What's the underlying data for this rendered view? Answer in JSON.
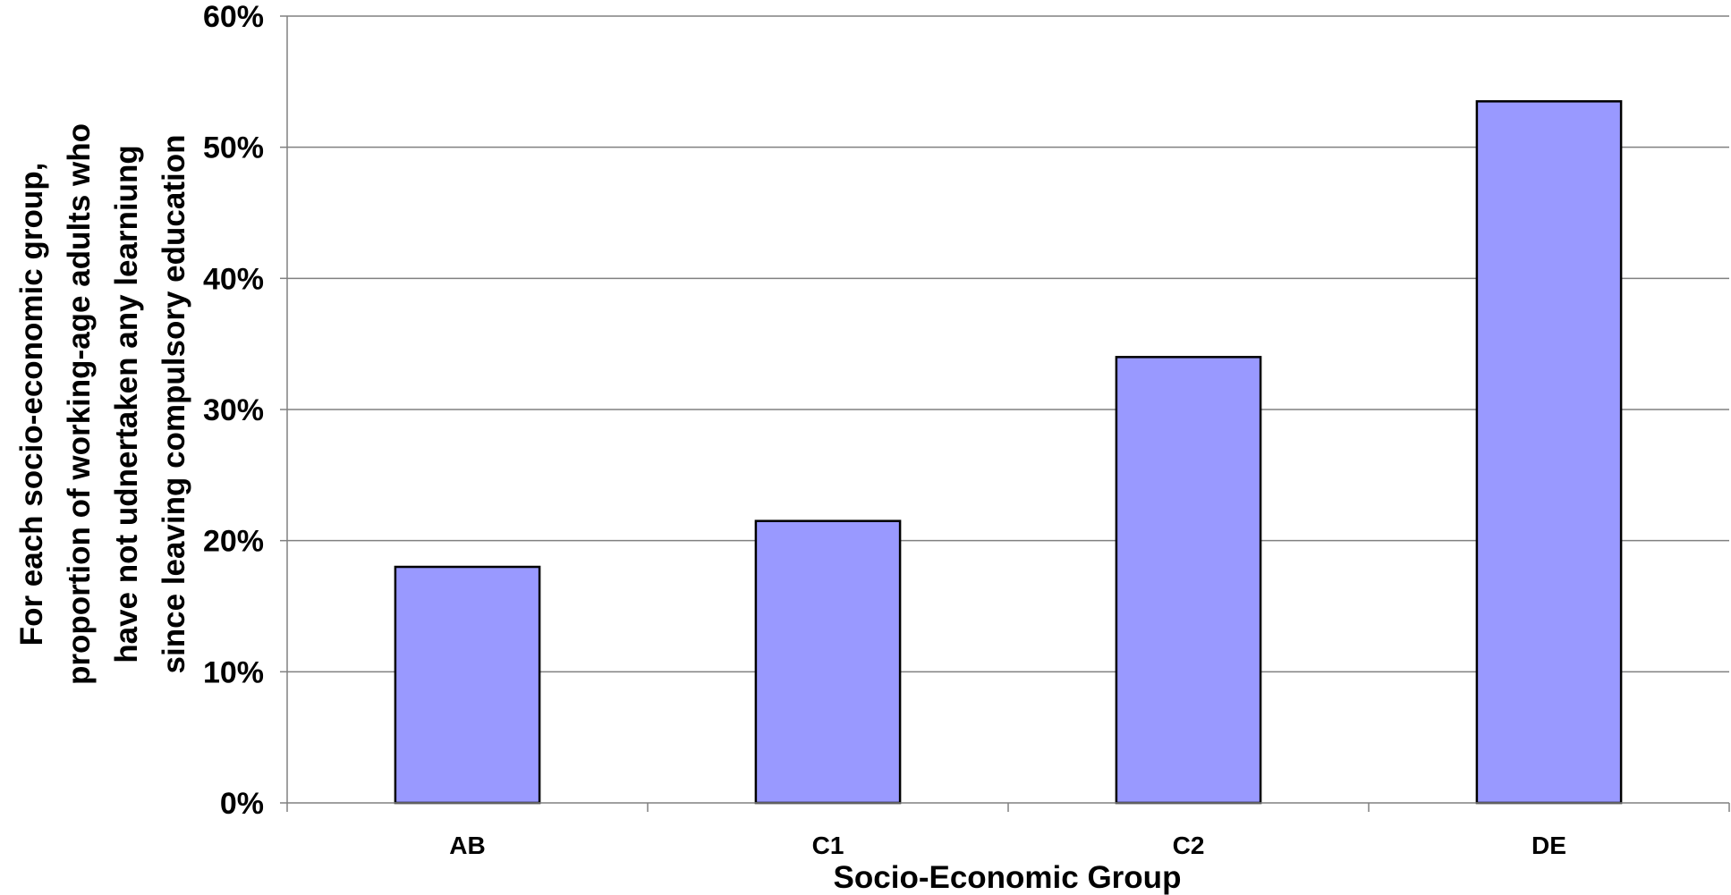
{
  "chart_data": {
    "type": "bar",
    "categories": [
      "AB",
      "C1",
      "C2",
      "DE"
    ],
    "values": [
      18,
      21.5,
      34,
      53.5
    ],
    "value_unit": "%",
    "title": "",
    "xlabel": "Socio-Economic Group",
    "ylabel_lines": [
      "For each socio-economic group,",
      "proportion of working-age adults who",
      "have not udnertaken any learniung",
      "since leaving compulsory education"
    ],
    "ylim": [
      0,
      60
    ],
    "yticks": [
      "0%",
      "10%",
      "20%",
      "30%",
      "40%",
      "50%",
      "60%"
    ],
    "grid": true,
    "legend": "none",
    "colors": {
      "bar_fill": "#9999ff",
      "bar_stroke": "#000000",
      "gridline": "#808080",
      "axis": "#808080"
    }
  }
}
